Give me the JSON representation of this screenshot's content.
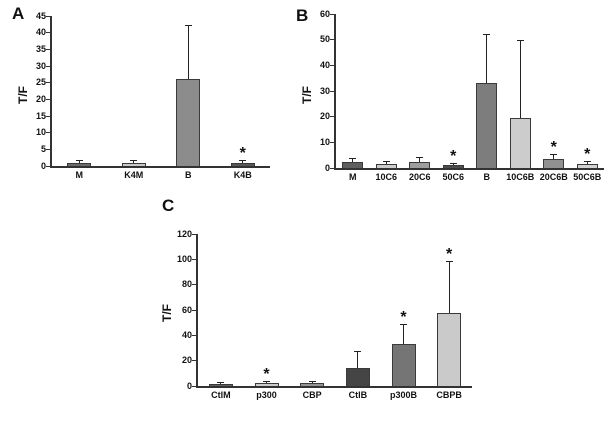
{
  "chart_data": [
    {
      "type": "bar",
      "panel": "A",
      "title": "",
      "xlabel": "",
      "ylabel": "T/F",
      "ylim": [
        0,
        45
      ],
      "ytick_step": 5,
      "grid": false,
      "legend": false,
      "categories": [
        "M",
        "K4M",
        "B",
        "K4B"
      ],
      "values": [
        1,
        1,
        26,
        0.8
      ],
      "errors": [
        0.4,
        0.5,
        16,
        0.6
      ],
      "asterisks": [
        false,
        false,
        false,
        true
      ],
      "bar_colors": [
        "#6b6b6b",
        "#c9c9c9",
        "#8c8c8c",
        "#575757"
      ]
    },
    {
      "type": "bar",
      "panel": "B",
      "title": "",
      "xlabel": "",
      "ylabel": "T/F",
      "ylim": [
        0,
        60
      ],
      "ytick_step": 10,
      "grid": false,
      "legend": false,
      "categories": [
        "M",
        "10C6",
        "20C6",
        "50C6",
        "B",
        "10C6B",
        "20C6B",
        "50C6B"
      ],
      "values": [
        2.5,
        1.5,
        2.5,
        1,
        33,
        19.5,
        3.5,
        1.5
      ],
      "errors": [
        1,
        0.7,
        1.5,
        0.5,
        19,
        30,
        1.5,
        0.8
      ],
      "asterisks": [
        false,
        false,
        false,
        true,
        false,
        false,
        true,
        true
      ],
      "bar_colors": [
        "#5f5f5f",
        "#cccccc",
        "#9e9e9e",
        "#4d4d4d",
        "#7d7d7d",
        "#cccccc",
        "#919191",
        "#d2d2d2"
      ]
    },
    {
      "type": "bar",
      "panel": "C",
      "title": "",
      "xlabel": "",
      "ylabel": "T/F",
      "ylim": [
        0,
        120
      ],
      "ytick_step": 20,
      "grid": false,
      "legend": false,
      "categories": [
        "CtlM",
        "p300",
        "CBP",
        "CtlB",
        "p300B",
        "CBPB"
      ],
      "values": [
        1.5,
        2,
        2,
        14,
        33,
        58
      ],
      "errors": [
        0.5,
        1,
        1,
        13,
        15,
        40
      ],
      "asterisks": [
        false,
        true,
        false,
        false,
        true,
        true
      ],
      "bar_colors": [
        "#606060",
        "#cccccc",
        "#949494",
        "#454545",
        "#757575",
        "#cacaca"
      ]
    }
  ]
}
